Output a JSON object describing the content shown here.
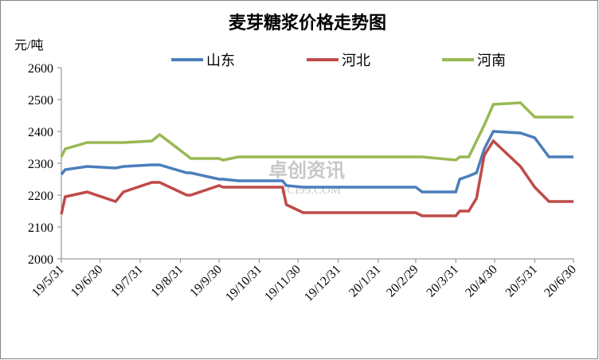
{
  "chart_data": {
    "type": "line",
    "title": "麦芽糖浆价格走势图",
    "y_label": "元/吨",
    "watermark": "卓创资讯",
    "watermark_sub": "SCI99.COM",
    "x": [
      "19/5/31",
      "19/6/3",
      "19/6/20",
      "19/7/12",
      "19/7/18",
      "19/8/9",
      "19/8/15",
      "19/9/5",
      "19/9/8",
      "19/9/30",
      "19/10/3",
      "19/10/15",
      "19/11/18",
      "19/11/21",
      "19/12/4",
      "19/12/31",
      "20/1/31",
      "20/2/29",
      "20/3/5",
      "20/3/31",
      "20/4/3",
      "20/4/10",
      "20/4/16",
      "20/4/22",
      "20/4/29",
      "20/5/20",
      "20/5/31",
      "20/6/11",
      "20/6/30"
    ],
    "series": [
      {
        "name": "山东",
        "color": "#4a7ebb",
        "values": [
          2265,
          2280,
          2290,
          2285,
          2290,
          2295,
          2295,
          2270,
          2270,
          2250,
          2250,
          2245,
          2245,
          2230,
          2225,
          2225,
          2225,
          2225,
          2210,
          2210,
          2250,
          2260,
          2270,
          2345,
          2400,
          2395,
          2380,
          2320,
          2320
        ]
      },
      {
        "name": "河北",
        "color": "#be4b48",
        "values": [
          2140,
          2195,
          2210,
          2180,
          2210,
          2240,
          2240,
          2200,
          2200,
          2230,
          2225,
          2225,
          2225,
          2170,
          2145,
          2145,
          2145,
          2145,
          2135,
          2135,
          2150,
          2150,
          2190,
          2325,
          2370,
          2290,
          2225,
          2180,
          2180
        ]
      },
      {
        "name": "河南",
        "color": "#98b954",
        "values": [
          2320,
          2345,
          2365,
          2365,
          2365,
          2370,
          2390,
          2325,
          2315,
          2315,
          2310,
          2320,
          2320,
          2320,
          2320,
          2320,
          2320,
          2320,
          2320,
          2310,
          2320,
          2320,
          2370,
          2420,
          2485,
          2490,
          2445,
          2445,
          2445
        ]
      }
    ],
    "xlim": [
      "19/5/31",
      "20/6/30"
    ],
    "xticks": [
      "19/5/31",
      "19/6/30",
      "19/7/31",
      "19/8/31",
      "19/9/30",
      "19/10/31",
      "19/11/30",
      "19/12/31",
      "20/1/31",
      "20/2/29",
      "20/3/31",
      "20/4/30",
      "20/5/31",
      "20/6/30"
    ],
    "ylim": [
      2000,
      2600
    ],
    "yticks": [
      2000,
      2100,
      2200,
      2300,
      2400,
      2500,
      2600
    ],
    "legend": "top"
  }
}
